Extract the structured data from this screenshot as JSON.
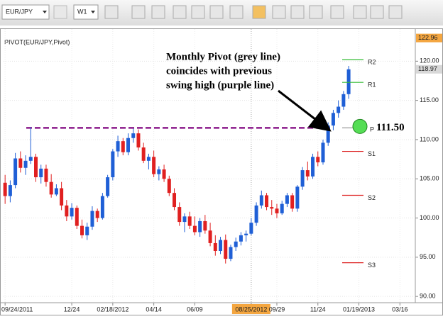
{
  "toolbar": {
    "symbol": "EUR/JPY",
    "timeframe": "W1"
  },
  "chart_data": {
    "type": "candlestick",
    "title": "PIVOT(EUR/JPY,Pivot)",
    "open": [
      104.5,
      102.8,
      104.2,
      107.6,
      106.4,
      107.3,
      107.8,
      105.2,
      106.3,
      104.6,
      103.0,
      103.8,
      101.6,
      100.2,
      101.3,
      99.0,
      97.8,
      98.9,
      100.9,
      100.0,
      102.8,
      105.2,
      108.5,
      109.8,
      108.4,
      110.2,
      110.8,
      109.0,
      107.3,
      107.8,
      105.6,
      106.2,
      105.0,
      103.2,
      101.4,
      99.5,
      100.2,
      99.0,
      98.2,
      99.6,
      98.4,
      96.8,
      95.8,
      97.2,
      94.8,
      96.3,
      97.0,
      97.8,
      98.0,
      99.4,
      101.6,
      102.9,
      101.4,
      101.2,
      100.6,
      101.8,
      102.9,
      101.2,
      104.0,
      106.1,
      105.3,
      107.8,
      107.1,
      109.6,
      111.8,
      113.4,
      114.2,
      115.8
    ],
    "high": [
      105.5,
      104.8,
      108.3,
      108.5,
      108.0,
      111.6,
      108.2,
      106.8,
      106.8,
      105.6,
      104.3,
      104.6,
      102.3,
      101.9,
      101.6,
      99.8,
      99.4,
      101.5,
      101.2,
      103.2,
      105.5,
      108.8,
      110.5,
      110.2,
      110.8,
      111.4,
      111.3,
      109.6,
      108.2,
      108.6,
      106.6,
      106.8,
      105.4,
      103.8,
      102.0,
      100.6,
      100.8,
      100.2,
      100.0,
      100.4,
      99.4,
      97.8,
      97.6,
      97.9,
      96.6,
      97.5,
      98.2,
      98.4,
      100.0,
      102.0,
      103.5,
      103.2,
      102.3,
      101.8,
      102.2,
      103.2,
      103.2,
      104.2,
      106.5,
      107.2,
      108.2,
      108.5,
      110.0,
      112.2,
      113.8,
      115.0,
      116.2,
      119.4
    ],
    "low": [
      101.8,
      102.0,
      103.8,
      105.8,
      105.5,
      106.9,
      104.6,
      104.4,
      104.0,
      102.6,
      102.8,
      101.0,
      99.6,
      99.8,
      98.6,
      97.4,
      97.2,
      98.5,
      99.5,
      99.8,
      102.6,
      104.8,
      107.8,
      108.0,
      108.0,
      109.6,
      108.6,
      107.0,
      106.2,
      105.2,
      104.8,
      104.6,
      102.8,
      101.0,
      99.0,
      98.2,
      98.6,
      97.8,
      97.6,
      98.0,
      96.4,
      95.2,
      95.4,
      94.2,
      94.5,
      95.8,
      96.5,
      97.0,
      97.8,
      99.0,
      101.2,
      101.0,
      100.4,
      100.0,
      100.4,
      101.4,
      100.8,
      100.8,
      103.6,
      104.8,
      105.0,
      106.6,
      106.8,
      109.2,
      111.2,
      112.8,
      113.8,
      115.2
    ],
    "close": [
      102.8,
      104.2,
      107.6,
      106.4,
      107.3,
      107.8,
      105.2,
      106.3,
      104.6,
      103.0,
      103.8,
      101.6,
      100.2,
      101.3,
      99.0,
      97.8,
      98.9,
      100.9,
      100.0,
      102.8,
      105.2,
      108.5,
      109.8,
      108.4,
      110.2,
      110.8,
      109.0,
      107.3,
      107.8,
      105.6,
      106.2,
      105.0,
      103.2,
      101.4,
      99.5,
      100.2,
      99.0,
      98.2,
      99.6,
      98.4,
      96.8,
      95.8,
      97.2,
      94.8,
      96.3,
      97.0,
      97.8,
      98.0,
      99.4,
      101.6,
      102.9,
      101.4,
      101.2,
      100.6,
      101.8,
      102.9,
      101.2,
      104.0,
      106.1,
      105.3,
      107.8,
      107.1,
      109.6,
      111.8,
      113.4,
      114.2,
      115.8,
      118.97
    ],
    "up_color": "#1f5fd6",
    "down_color": "#e02020",
    "ylim": [
      89.2,
      124.1
    ],
    "yticks": [
      90.0,
      95.0,
      100.0,
      105.0,
      110.0,
      115.0,
      120.0
    ],
    "ytick_labels": [
      "90.00",
      "95.00",
      "100.00",
      "105.00",
      "110.00",
      "115.00",
      "120.00"
    ],
    "xlim": [
      -0.3,
      80
    ],
    "xticks": [
      {
        "value": 0,
        "label": "09/24/2011"
      },
      {
        "value": 13,
        "label": "12/24"
      },
      {
        "value": 21,
        "label": "02/18/2012"
      },
      {
        "value": 29,
        "label": "04/14"
      },
      {
        "value": 37,
        "label": "06/09"
      },
      {
        "value": 48,
        "label": "08/25/2012"
      },
      {
        "value": 53,
        "label": "09/29"
      },
      {
        "value": 61,
        "label": "11/24"
      },
      {
        "value": 69,
        "label": "01/19/2013"
      },
      {
        "value": 77,
        "label": "03/16"
      }
    ],
    "crosshair_x": 48,
    "grid": true,
    "price_tags": [
      122.96,
      118.97
    ],
    "pivot_levels": [
      {
        "name": "R2",
        "value": 120.2,
        "color": "#33bb33"
      },
      {
        "name": "R1",
        "value": 117.3,
        "color": "#33bb33"
      },
      {
        "name": "P",
        "value": 111.5,
        "value_label": "111.50",
        "color": "#999999"
      },
      {
        "name": "S1",
        "value": 108.5,
        "color": "#dd2222"
      },
      {
        "name": "S2",
        "value": 102.9,
        "color": "#dd2222"
      },
      {
        "name": "S3",
        "value": 94.3,
        "color": "#dd2222"
      }
    ],
    "swing_high": {
      "value": 111.5,
      "color": "#8b1a8b"
    },
    "annotation": [
      "Monthly Pivot (grey line)",
      "coincides with previous",
      "swing high (purple line)"
    ]
  }
}
